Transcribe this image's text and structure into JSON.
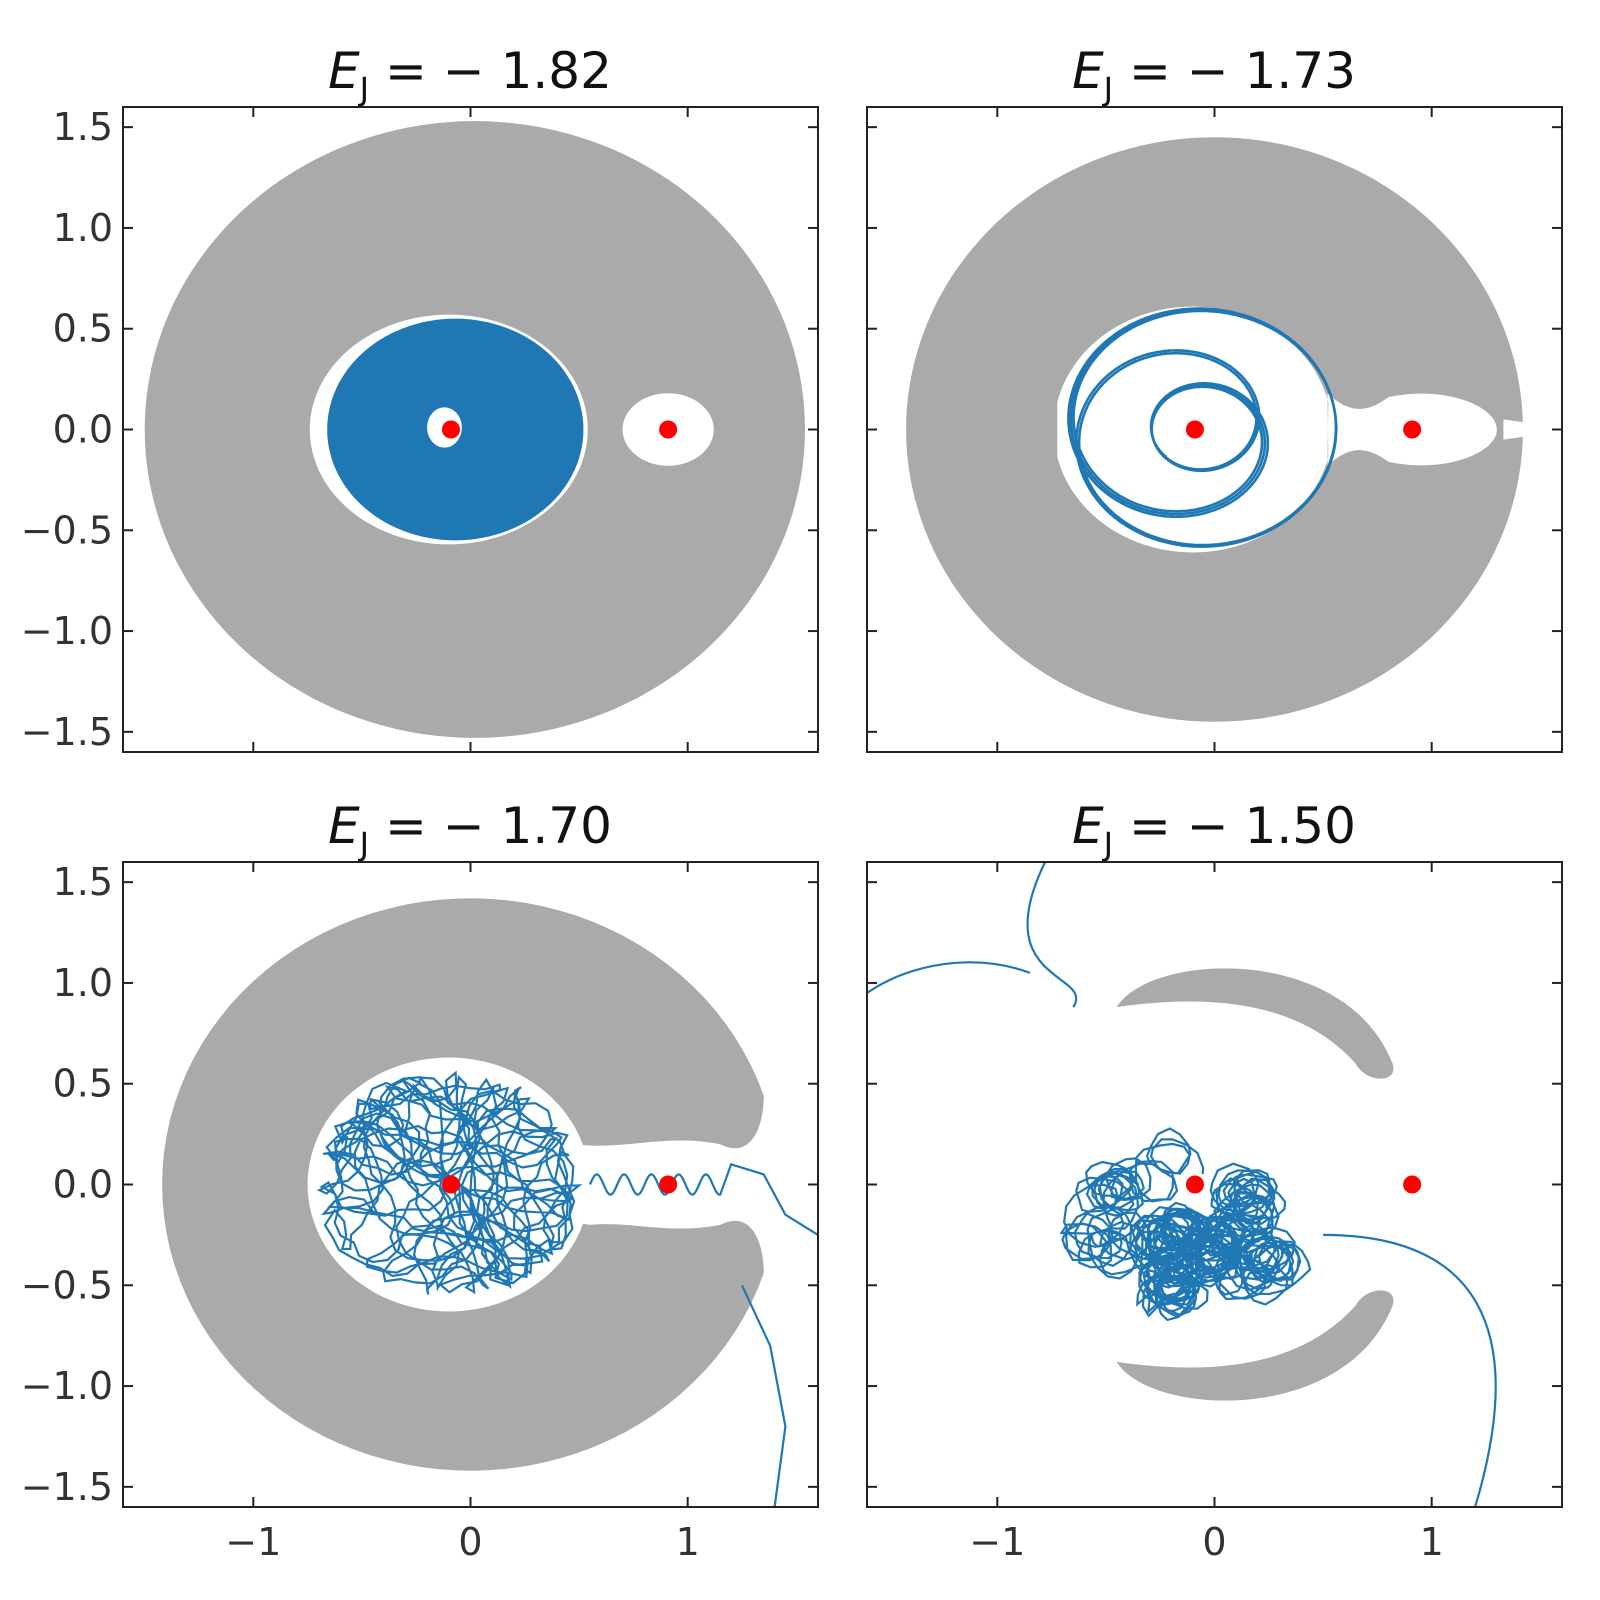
{
  "figure": {
    "colors": {
      "forbidden_region": "#aaaaaa",
      "orbit": "#1f77b4",
      "masses": "#ff0000",
      "frame": "#222222"
    },
    "shared_axes": {
      "xlim": [
        -1.6,
        1.6
      ],
      "ylim": [
        -1.6,
        1.6
      ],
      "xticks": [
        -1,
        0,
        1
      ],
      "xtick_labels": [
        "−1",
        "0",
        "1"
      ],
      "yticks": [
        1.5,
        1.0,
        0.5,
        0.0,
        -0.5,
        -1.0,
        -1.5
      ],
      "ytick_labels": [
        "1.5",
        "1.0",
        "0.5",
        "0.0",
        "−0.5",
        "−1.0",
        "−1.5"
      ],
      "tick_direction": "in"
    }
  },
  "chart_data": [
    {
      "type": "scatter",
      "title_symbol": "E",
      "title_subscript": "J",
      "title_rest": " = − 1.82",
      "E_J": -1.82,
      "xlim": [
        -1.6,
        1.6
      ],
      "ylim": [
        -1.6,
        1.6
      ],
      "grid": false,
      "masses": [
        {
          "x": -0.09,
          "y": 0.0
        },
        {
          "x": 0.91,
          "y": 0.0
        }
      ],
      "forbidden_region": "ring between r≈0.55 and r≈1.52 plus region around secondary",
      "orbit": {
        "behavior": "dense quasi-periodic filling around primary",
        "x_range": [
          -0.66,
          0.53
        ],
        "y_range": [
          -0.54,
          0.54
        ]
      }
    },
    {
      "type": "line",
      "title_symbol": "E",
      "title_subscript": "J",
      "title_rest": " = − 1.73",
      "E_J": -1.73,
      "xlim": [
        -1.6,
        1.6
      ],
      "ylim": [
        -1.6,
        1.6
      ],
      "grid": false,
      "masses": [
        {
          "x": -0.09,
          "y": 0.0
        },
        {
          "x": 0.91,
          "y": 0.0
        }
      ],
      "forbidden_region": "ring connected region, neck open between primary and secondary",
      "orbit": {
        "behavior": "rosette around primary",
        "x_range": [
          -0.58,
          0.35
        ],
        "y_range": [
          -0.58,
          0.6
        ]
      }
    },
    {
      "type": "line",
      "title_symbol": "E",
      "title_subscript": "J",
      "title_rest": " = − 1.70",
      "E_J": -1.7,
      "xlim": [
        -1.6,
        1.6
      ],
      "ylim": [
        -1.6,
        1.6
      ],
      "grid": false,
      "masses": [
        {
          "x": -0.09,
          "y": 0.0
        },
        {
          "x": 0.91,
          "y": 0.0
        }
      ],
      "forbidden_region": "horseshoe opened on the right",
      "orbit": {
        "behavior": "chaotic, escapes through right opening",
        "x_range": [
          -0.75,
          1.6
        ],
        "y_range": [
          -1.6,
          0.63
        ]
      }
    },
    {
      "type": "line",
      "title_symbol": "E",
      "title_subscript": "J",
      "title_rest": " = − 1.50",
      "E_J": -1.5,
      "xlim": [
        -1.6,
        1.6
      ],
      "ylim": [
        -1.6,
        1.6
      ],
      "grid": false,
      "masses": [
        {
          "x": -0.09,
          "y": 0.0
        },
        {
          "x": 0.91,
          "y": 0.0
        }
      ],
      "forbidden_region": "two tadpole lobes above and below",
      "orbit": {
        "behavior": "chaotic, escapes to upper-left and lower-right",
        "x_range": [
          -1.6,
          1.4
        ],
        "y_range": [
          -1.6,
          1.6
        ]
      }
    }
  ]
}
